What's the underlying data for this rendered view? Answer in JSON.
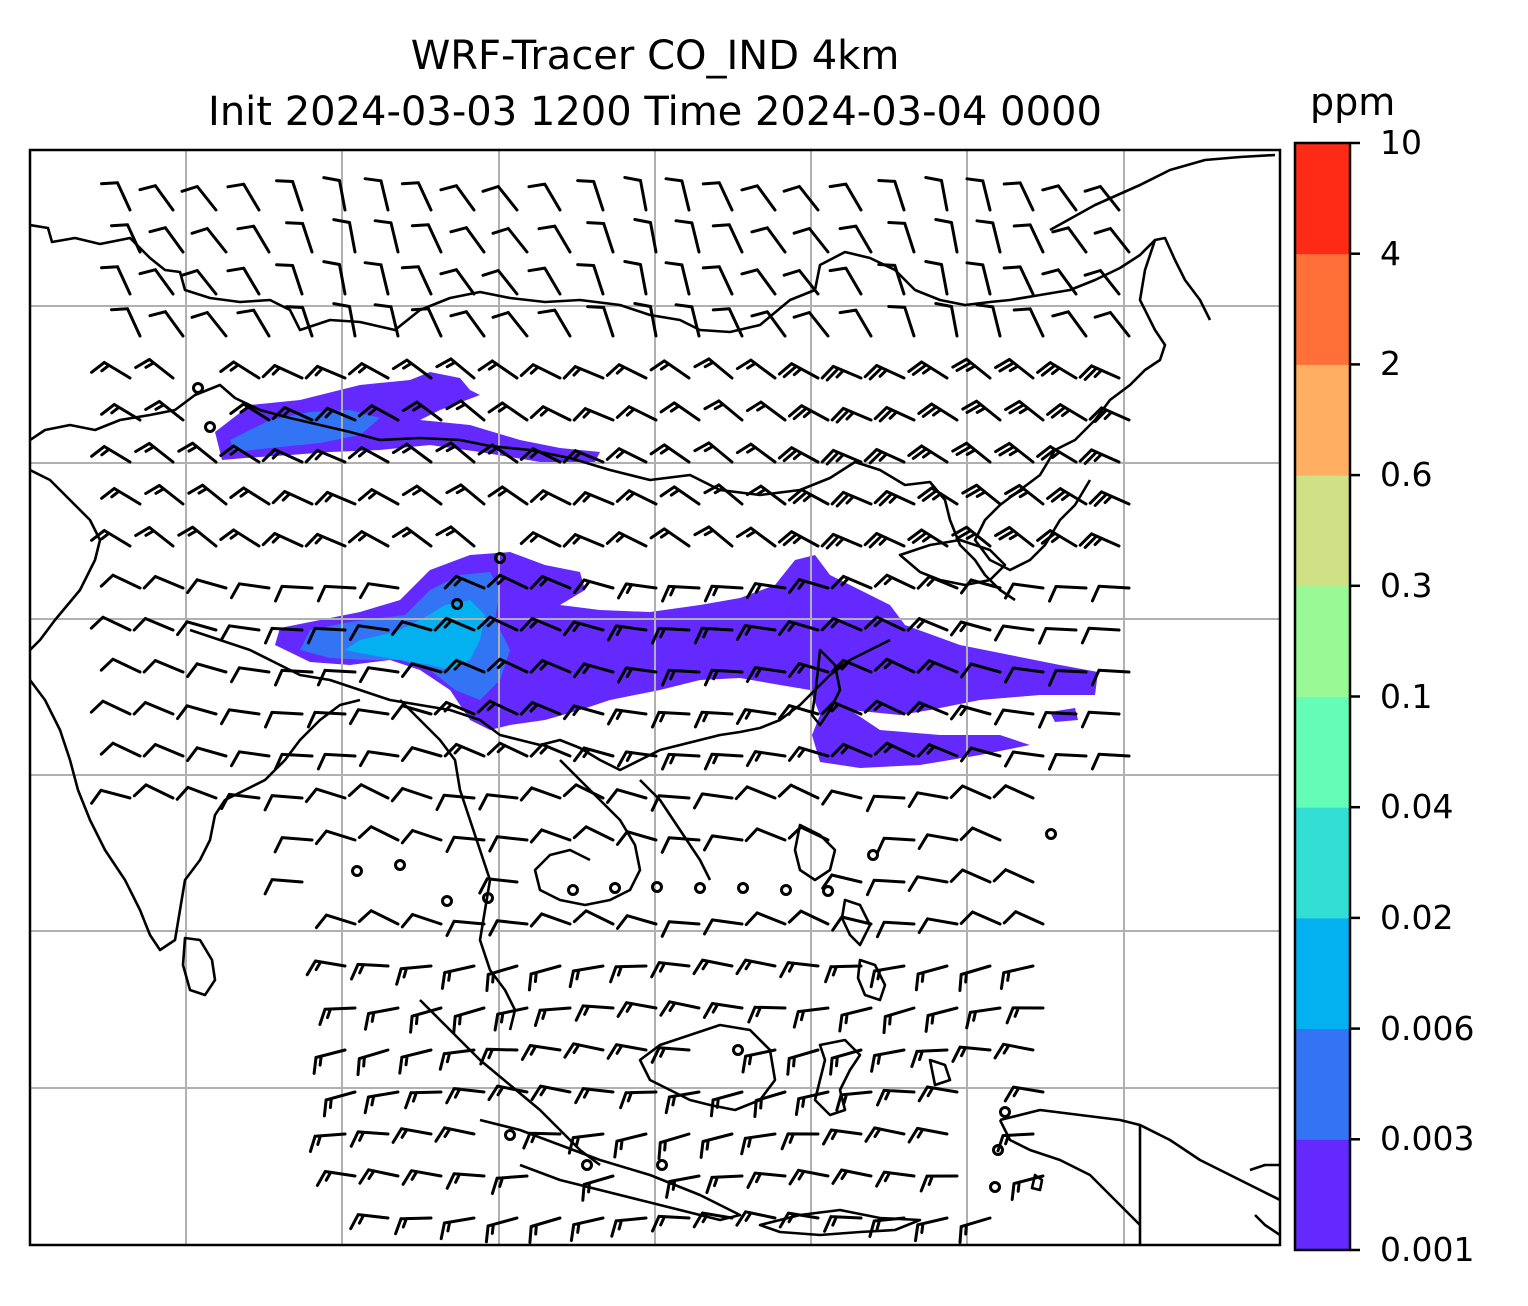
{
  "title": {
    "line1": "WRF-Tracer CO_IND 4km",
    "line2": "Init 2024-03-03 1200 Time 2024-03-04 0000"
  },
  "colorbar": {
    "unit": "ppm",
    "levels": [
      "0.001",
      "0.003",
      "0.006",
      "0.02",
      "0.04",
      "0.1",
      "0.3",
      "0.6",
      "2",
      "4",
      "10"
    ],
    "colors": [
      "#6329fe",
      "#3374f5",
      "#03b1f0",
      "#33dfd5",
      "#64fcb6",
      "#99f994",
      "#cfe085",
      "#ffae62",
      "#ff7038",
      "#ff2b17"
    ]
  },
  "plume": {
    "main_color": "#6329fe",
    "mid_color": "#3374f5",
    "core_color": "#03b1f0"
  },
  "map": {
    "gridlines": true,
    "wind_barbs": true,
    "coastlines": true
  }
}
